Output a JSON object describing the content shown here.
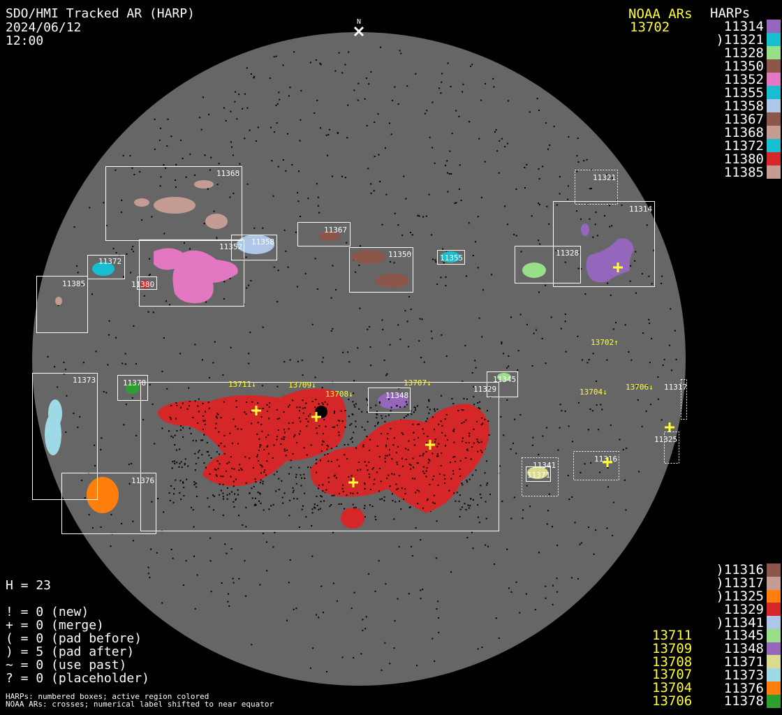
{
  "header": {
    "title": "SDO/HMI Tracked AR (HARP)",
    "date": "2024/06/12",
    "time": "12:00",
    "north": "N"
  },
  "noaa_header": {
    "title": "NOAA ARs",
    "top_list": [
      "13702"
    ],
    "bottom_list": [
      "13711",
      "13709",
      "13708",
      "13707",
      "13704",
      "13706"
    ]
  },
  "harps_header": "HARPs",
  "harps_top": [
    {
      "label": " 11314",
      "color": "#9467bd"
    },
    {
      "label": ")11321",
      "color": "#17becf"
    },
    {
      "label": " 11328",
      "color": "#98df8a"
    },
    {
      "label": " 11350",
      "color": "#8c564b"
    },
    {
      "label": " 11352",
      "color": "#e377c2"
    },
    {
      "label": " 11355",
      "color": "#17becf"
    },
    {
      "label": " 11358",
      "color": "#aec7e8"
    },
    {
      "label": " 11367",
      "color": "#8c564b"
    },
    {
      "label": " 11368",
      "color": "#c49c94"
    },
    {
      "label": " 11372",
      "color": "#17becf"
    },
    {
      "label": " 11380",
      "color": "#d62728"
    },
    {
      "label": " 11385",
      "color": "#c49c94"
    }
  ],
  "harps_bottom": [
    {
      "label": ")11316",
      "color": "#8c564b"
    },
    {
      "label": ")11317",
      "color": "#c49c94"
    },
    {
      "label": ")11325",
      "color": "#ff7f0e"
    },
    {
      "label": " 11329",
      "color": "#d62728"
    },
    {
      "label": ")11341",
      "color": "#aec7e8"
    },
    {
      "label": " 11345",
      "color": "#98df8a"
    },
    {
      "label": " 11348",
      "color": "#9467bd"
    },
    {
      "label": " 11371",
      "color": "#dbdb8d"
    },
    {
      "label": " 11373",
      "color": "#9edae5"
    },
    {
      "label": " 11376",
      "color": "#ff7f0e"
    },
    {
      "label": " 11378",
      "color": "#2ca02c"
    }
  ],
  "stats": {
    "h": "H = 23",
    "lines": [
      "! = 0 (new)",
      "+ = 0 (merge)",
      "( = 0 (pad before)",
      ") = 5 (pad after)",
      "~ = 0 (use past)",
      "? = 0 (placeholder)"
    ]
  },
  "footer": [
    "HARPs: numbered boxes; active region colored",
    "NOAA ARs: crosses; numerical label shifted to near equator"
  ],
  "disk_harp_labels": {
    "11368": "11368",
    "11358": "11358",
    "11352": "11352",
    "11372": "11372",
    "11380": "11380",
    "11385": "11385",
    "11367": "11367",
    "11350": "11350",
    "11355": "11355",
    "11328": "11328",
    "11314": "11314",
    "11321": "11321",
    "11373": "11373",
    "11378": "11378",
    "11376": "11376",
    "11329": "11329",
    "11348": "11348",
    "11345": "11345",
    "11341": "11341",
    "11371": "11371",
    "11316": "11316",
    "11317": "11317",
    "11325": "11325"
  },
  "disk_noaa_labels": {
    "13702": "13702↑",
    "13704": "13704↓",
    "13706": "13706↓",
    "13707": "13707↓",
    "13708": "13708↓",
    "13709": "13709↓",
    "13711": "13711↓"
  },
  "colors": {
    "disk": "#666666",
    "noaa": "#ffff33",
    "box": "#ffffff"
  }
}
